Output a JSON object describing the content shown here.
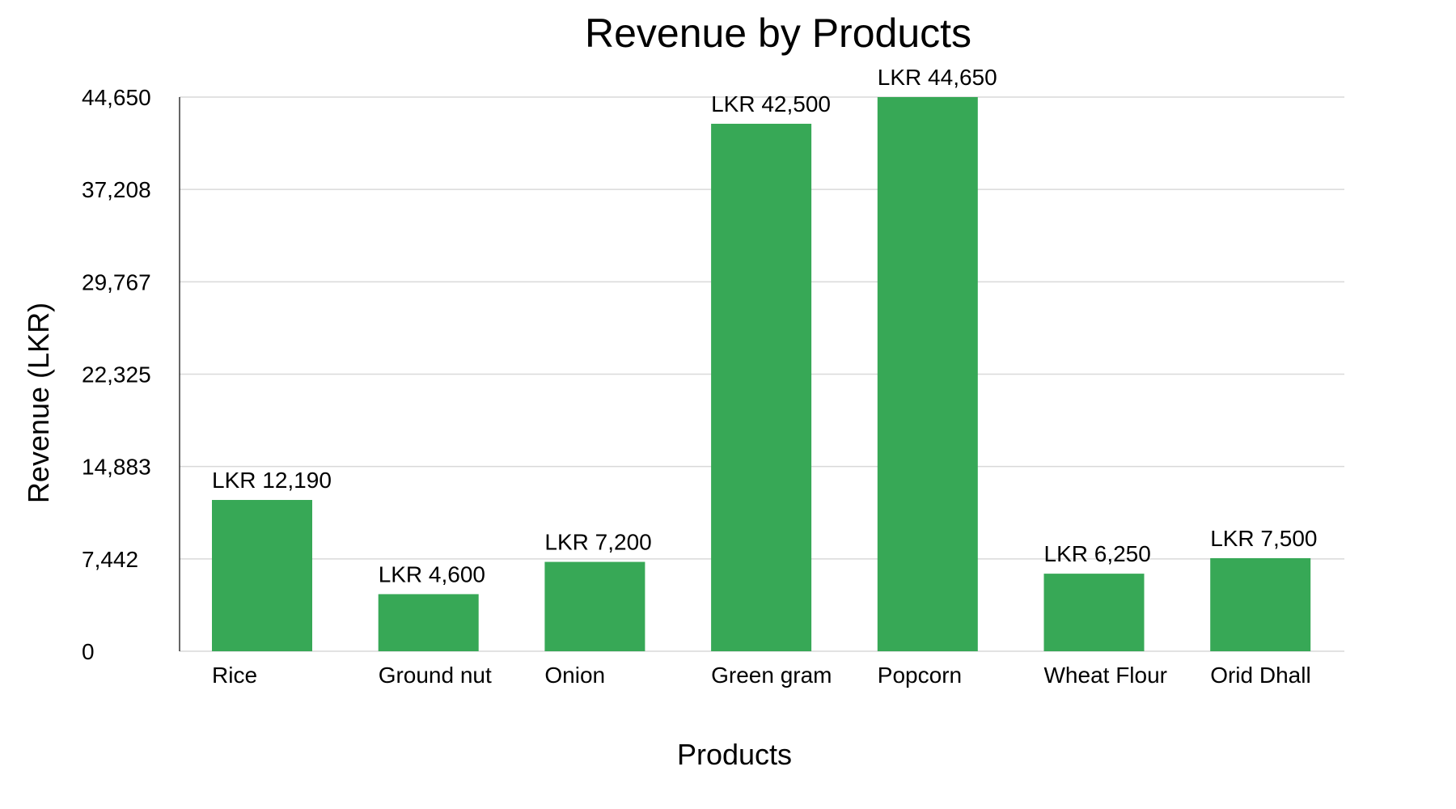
{
  "chart_data": {
    "type": "bar",
    "title": "Revenue by Products",
    "xlabel": "Products",
    "ylabel": "Revenue (LKR)",
    "categories": [
      "Rice",
      "Ground nut",
      "Onion",
      "Green gram",
      "Popcorn",
      "Wheat Flour",
      "Orid Dhall"
    ],
    "values": [
      12190,
      4600,
      7200,
      42500,
      44650,
      6250,
      7500
    ],
    "data_labels": [
      "LKR 12,190",
      "LKR 4,600",
      "LKR 7,200",
      "LKR 42,500",
      "LKR 44,650",
      "LKR 6,250",
      "LKR 7,500"
    ],
    "y_ticks": [
      "0",
      "7,442",
      "14,883",
      "22,325",
      "29,767",
      "37,208",
      "44,650"
    ],
    "ylim": [
      0,
      44650
    ],
    "grid": true,
    "colors": {
      "bar": "#37a856",
      "grid": "#d9d9d9",
      "axis": "#333333",
      "text": "#000000"
    }
  }
}
